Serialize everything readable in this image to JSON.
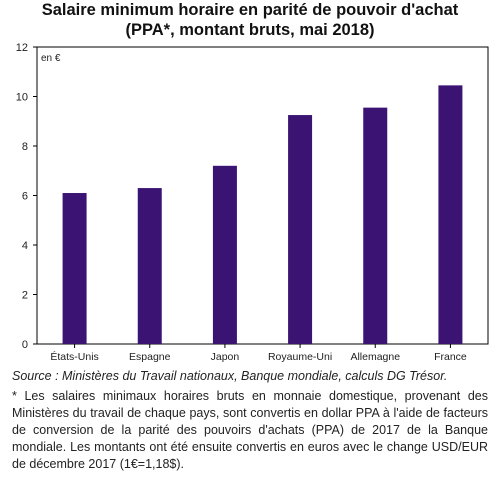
{
  "chart_data": {
    "type": "bar",
    "title": "Salaire minimum horaire en parité de pouvoir d'achat",
    "subtitle": "(PPA*, montant bruts, mai 2018)",
    "unit_label": "en €",
    "categories": [
      "États-Unis",
      "Espagne",
      "Japon",
      "Royaume-Uni",
      "Allemagne",
      "France"
    ],
    "values": [
      6.1,
      6.3,
      7.2,
      9.25,
      9.55,
      10.45
    ],
    "ylim": [
      0,
      12
    ],
    "yticks": [
      0,
      2,
      4,
      6,
      8,
      10,
      12
    ],
    "grid": false,
    "bar_color": "#3b1373"
  },
  "source": "Source : Ministères du Travail nationaux, Banque mondiale, calculs DG Trésor.",
  "footnote": "* Les salaires minimaux horaires bruts en monnaie domestique, provenant des Ministères du travail de chaque pays, sont convertis en dollar PPA à l'aide de facteurs de conversion de la parité des pouvoirs d'achats (PPA) de 2017 de la Banque mondiale. Les montants ont été ensuite convertis en euros avec le change USD/EUR de décembre 2017 (1€=1,18$)."
}
